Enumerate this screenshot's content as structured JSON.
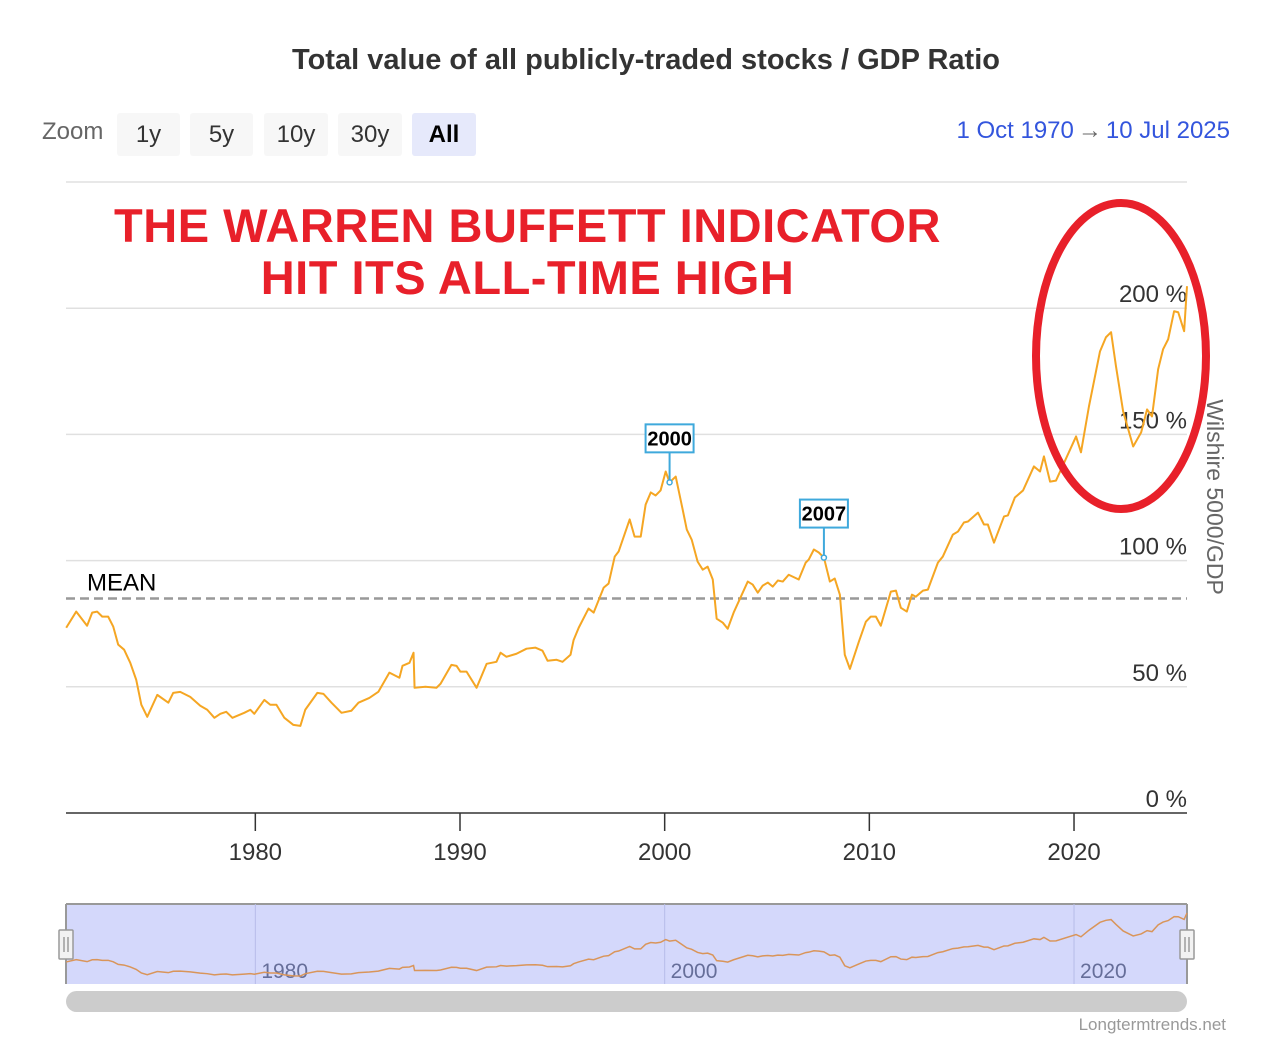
{
  "chart_data": {
    "type": "line",
    "title": "Total value of all publicly-traded stocks / GDP Ratio",
    "ylabel": "Wilshire 5000/GDP",
    "xlabel": "",
    "ylim": [
      0,
      250
    ],
    "xlim": [
      1970.75,
      2025.52
    ],
    "y_ticks": [
      "0 %",
      "50 %",
      "100 %",
      "150 %",
      "200 %"
    ],
    "y_tick_values": [
      0,
      50,
      100,
      150,
      200
    ],
    "x_ticks": [
      "1980",
      "1990",
      "2000",
      "2010",
      "2020"
    ],
    "x_tick_values": [
      1980,
      1990,
      2000,
      2010,
      2020
    ],
    "grid": true,
    "series_color": "#f5a623",
    "mean_line": {
      "label": "MEAN",
      "value": 85,
      "color": "#999999"
    },
    "flags": [
      {
        "label": "2000",
        "x": 2000.24,
        "y": 131.0
      },
      {
        "label": "2007",
        "x": 2007.78,
        "y": 101.2
      }
    ],
    "series": [
      {
        "points": [
          [
            1970.76,
            73.4
          ],
          [
            1971.25,
            79.8
          ],
          [
            1971.78,
            74.2
          ],
          [
            1972.03,
            79.4
          ],
          [
            1972.27,
            79.8
          ],
          [
            1972.52,
            77.8
          ],
          [
            1972.81,
            77.8
          ],
          [
            1973.06,
            73.8
          ],
          [
            1973.3,
            66.7
          ],
          [
            1973.59,
            64.7
          ],
          [
            1973.89,
            59.5
          ],
          [
            1974.18,
            52.8
          ],
          [
            1974.43,
            42.9
          ],
          [
            1974.72,
            38.1
          ],
          [
            1975.21,
            46.8
          ],
          [
            1975.75,
            43.7
          ],
          [
            1975.99,
            47.6
          ],
          [
            1976.33,
            48.0
          ],
          [
            1976.82,
            46.0
          ],
          [
            1977.31,
            42.5
          ],
          [
            1977.65,
            40.9
          ],
          [
            1978.0,
            37.7
          ],
          [
            1978.29,
            39.3
          ],
          [
            1978.58,
            40.1
          ],
          [
            1978.88,
            37.7
          ],
          [
            1979.46,
            39.7
          ],
          [
            1979.76,
            40.9
          ],
          [
            1979.95,
            39.3
          ],
          [
            1980.44,
            44.8
          ],
          [
            1980.73,
            42.9
          ],
          [
            1981.03,
            42.9
          ],
          [
            1981.42,
            37.7
          ],
          [
            1981.86,
            34.9
          ],
          [
            1982.2,
            34.5
          ],
          [
            1982.44,
            40.9
          ],
          [
            1983.03,
            47.6
          ],
          [
            1983.33,
            47.2
          ],
          [
            1983.72,
            43.7
          ],
          [
            1984.21,
            39.7
          ],
          [
            1984.69,
            40.5
          ],
          [
            1985.04,
            43.7
          ],
          [
            1985.57,
            45.6
          ],
          [
            1986.01,
            48.0
          ],
          [
            1986.55,
            55.6
          ],
          [
            1987.04,
            53.6
          ],
          [
            1987.19,
            58.3
          ],
          [
            1987.53,
            59.5
          ],
          [
            1987.73,
            63.5
          ],
          [
            1987.78,
            49.6
          ],
          [
            1988.31,
            50.0
          ],
          [
            1988.85,
            49.6
          ],
          [
            1989.05,
            51.2
          ],
          [
            1989.58,
            58.7
          ],
          [
            1989.83,
            58.3
          ],
          [
            1990.02,
            56.0
          ],
          [
            1990.32,
            56.0
          ],
          [
            1990.81,
            49.6
          ],
          [
            1991.3,
            59.1
          ],
          [
            1991.78,
            59.9
          ],
          [
            1991.98,
            63.5
          ],
          [
            1992.27,
            61.9
          ],
          [
            1992.76,
            63.1
          ],
          [
            1993.25,
            65.1
          ],
          [
            1993.69,
            65.5
          ],
          [
            1994.03,
            64.3
          ],
          [
            1994.28,
            60.3
          ],
          [
            1994.72,
            60.7
          ],
          [
            1995.01,
            59.9
          ],
          [
            1995.4,
            62.7
          ],
          [
            1995.55,
            68.5
          ],
          [
            1995.8,
            73.4
          ],
          [
            1996.28,
            81.0
          ],
          [
            1996.53,
            79.4
          ],
          [
            1997.02,
            89.3
          ],
          [
            1997.26,
            90.9
          ],
          [
            1997.56,
            101.6
          ],
          [
            1997.75,
            103.6
          ],
          [
            1998.29,
            116.3
          ],
          [
            1998.53,
            109.5
          ],
          [
            1998.83,
            109.5
          ],
          [
            1999.07,
            122.2
          ],
          [
            1999.32,
            127.0
          ],
          [
            1999.56,
            125.8
          ],
          [
            1999.8,
            127.8
          ],
          [
            2000.05,
            135.3
          ],
          [
            2000.24,
            131.0
          ],
          [
            2000.54,
            133.3
          ],
          [
            2000.88,
            120.2
          ],
          [
            2001.08,
            112.3
          ],
          [
            2001.32,
            108.3
          ],
          [
            2001.61,
            99.6
          ],
          [
            2001.86,
            96.4
          ],
          [
            2002.1,
            97.6
          ],
          [
            2002.35,
            92.5
          ],
          [
            2002.54,
            77.0
          ],
          [
            2002.84,
            75.4
          ],
          [
            2003.08,
            73.0
          ],
          [
            2003.37,
            79.4
          ],
          [
            2004.06,
            91.7
          ],
          [
            2004.3,
            90.5
          ],
          [
            2004.55,
            87.3
          ],
          [
            2004.79,
            90.1
          ],
          [
            2005.04,
            91.3
          ],
          [
            2005.28,
            89.7
          ],
          [
            2005.53,
            92.1
          ],
          [
            2005.77,
            91.7
          ],
          [
            2006.06,
            94.4
          ],
          [
            2006.55,
            92.5
          ],
          [
            2006.89,
            99.2
          ],
          [
            2007.04,
            100.4
          ],
          [
            2007.29,
            104.4
          ],
          [
            2007.53,
            103.2
          ],
          [
            2007.78,
            101.2
          ],
          [
            2008.07,
            91.7
          ],
          [
            2008.31,
            92.9
          ],
          [
            2008.56,
            86.5
          ],
          [
            2008.8,
            62.7
          ],
          [
            2009.05,
            57.1
          ],
          [
            2009.49,
            67.9
          ],
          [
            2009.83,
            75.8
          ],
          [
            2010.07,
            77.8
          ],
          [
            2010.32,
            77.8
          ],
          [
            2010.56,
            74.2
          ],
          [
            2011.05,
            87.7
          ],
          [
            2011.3,
            88.1
          ],
          [
            2011.54,
            81.3
          ],
          [
            2011.83,
            79.8
          ],
          [
            2012.08,
            86.5
          ],
          [
            2012.27,
            85.7
          ],
          [
            2012.62,
            88.1
          ],
          [
            2012.86,
            88.5
          ],
          [
            2013.35,
            99.2
          ],
          [
            2013.59,
            101.6
          ],
          [
            2014.08,
            110.3
          ],
          [
            2014.33,
            111.5
          ],
          [
            2014.62,
            115.1
          ],
          [
            2014.82,
            115.5
          ],
          [
            2015.31,
            119.0
          ],
          [
            2015.6,
            114.3
          ],
          [
            2015.79,
            114.3
          ],
          [
            2016.09,
            107.1
          ],
          [
            2016.58,
            117.5
          ],
          [
            2016.77,
            117.9
          ],
          [
            2017.11,
            125.0
          ],
          [
            2017.51,
            127.8
          ],
          [
            2018.04,
            137.3
          ],
          [
            2018.34,
            135.3
          ],
          [
            2018.53,
            141.3
          ],
          [
            2018.83,
            131.3
          ],
          [
            2019.12,
            131.7
          ],
          [
            2020.1,
            149.2
          ],
          [
            2020.34,
            142.9
          ],
          [
            2020.73,
            161.1
          ],
          [
            2021.27,
            182.9
          ],
          [
            2021.56,
            188.5
          ],
          [
            2021.81,
            190.5
          ],
          [
            2022.05,
            177.0
          ],
          [
            2022.4,
            159.1
          ],
          [
            2022.89,
            145.2
          ],
          [
            2023.28,
            150.8
          ],
          [
            2023.57,
            159.9
          ],
          [
            2023.81,
            157.1
          ],
          [
            2024.11,
            175.8
          ],
          [
            2024.35,
            183.7
          ],
          [
            2024.6,
            187.7
          ],
          [
            2024.89,
            198.8
          ],
          [
            2025.09,
            198.4
          ],
          [
            2025.38,
            190.9
          ],
          [
            2025.52,
            208.7
          ]
        ]
      }
    ]
  },
  "toolbar": {
    "zoom_label": "Zoom",
    "buttons": [
      "1y",
      "5y",
      "10y",
      "30y",
      "All"
    ],
    "active": "All",
    "range_from": "1 Oct 1970",
    "range_arrow": "→",
    "range_to": "10 Jul 2025"
  },
  "annotation": {
    "line1": "THE WARREN BUFFETT INDICATOR",
    "line2": "HIT ITS ALL-TIME HIGH",
    "color": "#e8202a"
  },
  "navigator": {
    "labels": [
      "1980",
      "2000",
      "2020"
    ],
    "label_values": [
      1980,
      2000,
      2020
    ],
    "fill": "#d4d8fb",
    "line_color": "#d9955a"
  },
  "credits": "Longtermtrends.net"
}
